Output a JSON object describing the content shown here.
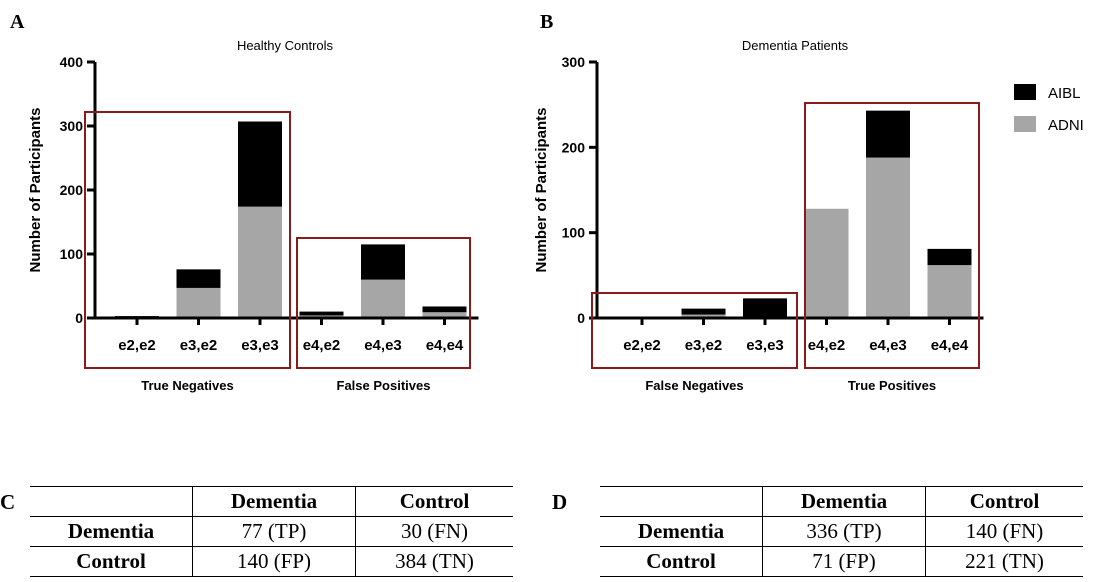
{
  "colors": {
    "aibl": "#000000",
    "adni": "#a6a6a6",
    "box": "#8b1a1a"
  },
  "legend": [
    {
      "label": "AIBL",
      "color": "#000000"
    },
    {
      "label": "ADNI",
      "color": "#a6a6a6"
    }
  ],
  "chart_data": [
    {
      "panel": "A",
      "type": "bar",
      "stacked": true,
      "title": "Healthy Controls",
      "ylabel": "Number of Participants",
      "xlabel": "",
      "ylim": [
        0,
        400
      ],
      "yticks": [
        0,
        100,
        200,
        300,
        400
      ],
      "categories": [
        "e2,e2",
        "e3,e2",
        "e3,e3",
        "e4,e2",
        "e4,e3",
        "e4,e4"
      ],
      "series": [
        {
          "name": "ADNI",
          "values": [
            1,
            47,
            174,
            4,
            60,
            9
          ]
        },
        {
          "name": "AIBL",
          "values": [
            2,
            29,
            133,
            6,
            55,
            9
          ]
        }
      ],
      "groups": [
        {
          "label": "True Negatives",
          "from": 0,
          "to": 2
        },
        {
          "label": "False Positives",
          "from": 3,
          "to": 5
        }
      ],
      "legend": "none"
    },
    {
      "panel": "B",
      "type": "bar",
      "stacked": true,
      "title": "Dementia Patients",
      "ylabel": "Number of Participants",
      "xlabel": "",
      "ylim": [
        0,
        300
      ],
      "yticks": [
        0,
        100,
        200,
        300
      ],
      "categories": [
        "e2,e2",
        "e3,e2",
        "e3,e3",
        "e4,e2",
        "e4,e3",
        "e4,e4"
      ],
      "series": [
        {
          "name": "ADNI",
          "values": [
            0,
            4,
            1,
            128,
            188,
            62
          ]
        },
        {
          "name": "AIBL",
          "values": [
            0,
            7,
            22,
            0,
            55,
            19
          ]
        }
      ],
      "groups": [
        {
          "label": "False Negatives",
          "from": 0,
          "to": 2
        },
        {
          "label": "True Positives",
          "from": 3,
          "to": 5
        }
      ],
      "legend": "top-right"
    }
  ],
  "tables": [
    {
      "letter": "C",
      "columns": [
        "Dementia",
        "Control"
      ],
      "rows": [
        {
          "label": "Dementia",
          "cells": [
            "77 (TP)",
            "30 (FN)"
          ]
        },
        {
          "label": "Control",
          "cells": [
            "140 (FP)",
            "384 (TN)"
          ]
        }
      ]
    },
    {
      "letter": "D",
      "columns": [
        "Dementia",
        "Control"
      ],
      "rows": [
        {
          "label": "Dementia",
          "cells": [
            "336 (TP)",
            "140 (FN)"
          ]
        },
        {
          "label": "Control",
          "cells": [
            "71 (FP)",
            "221 (TN)"
          ]
        }
      ]
    }
  ]
}
